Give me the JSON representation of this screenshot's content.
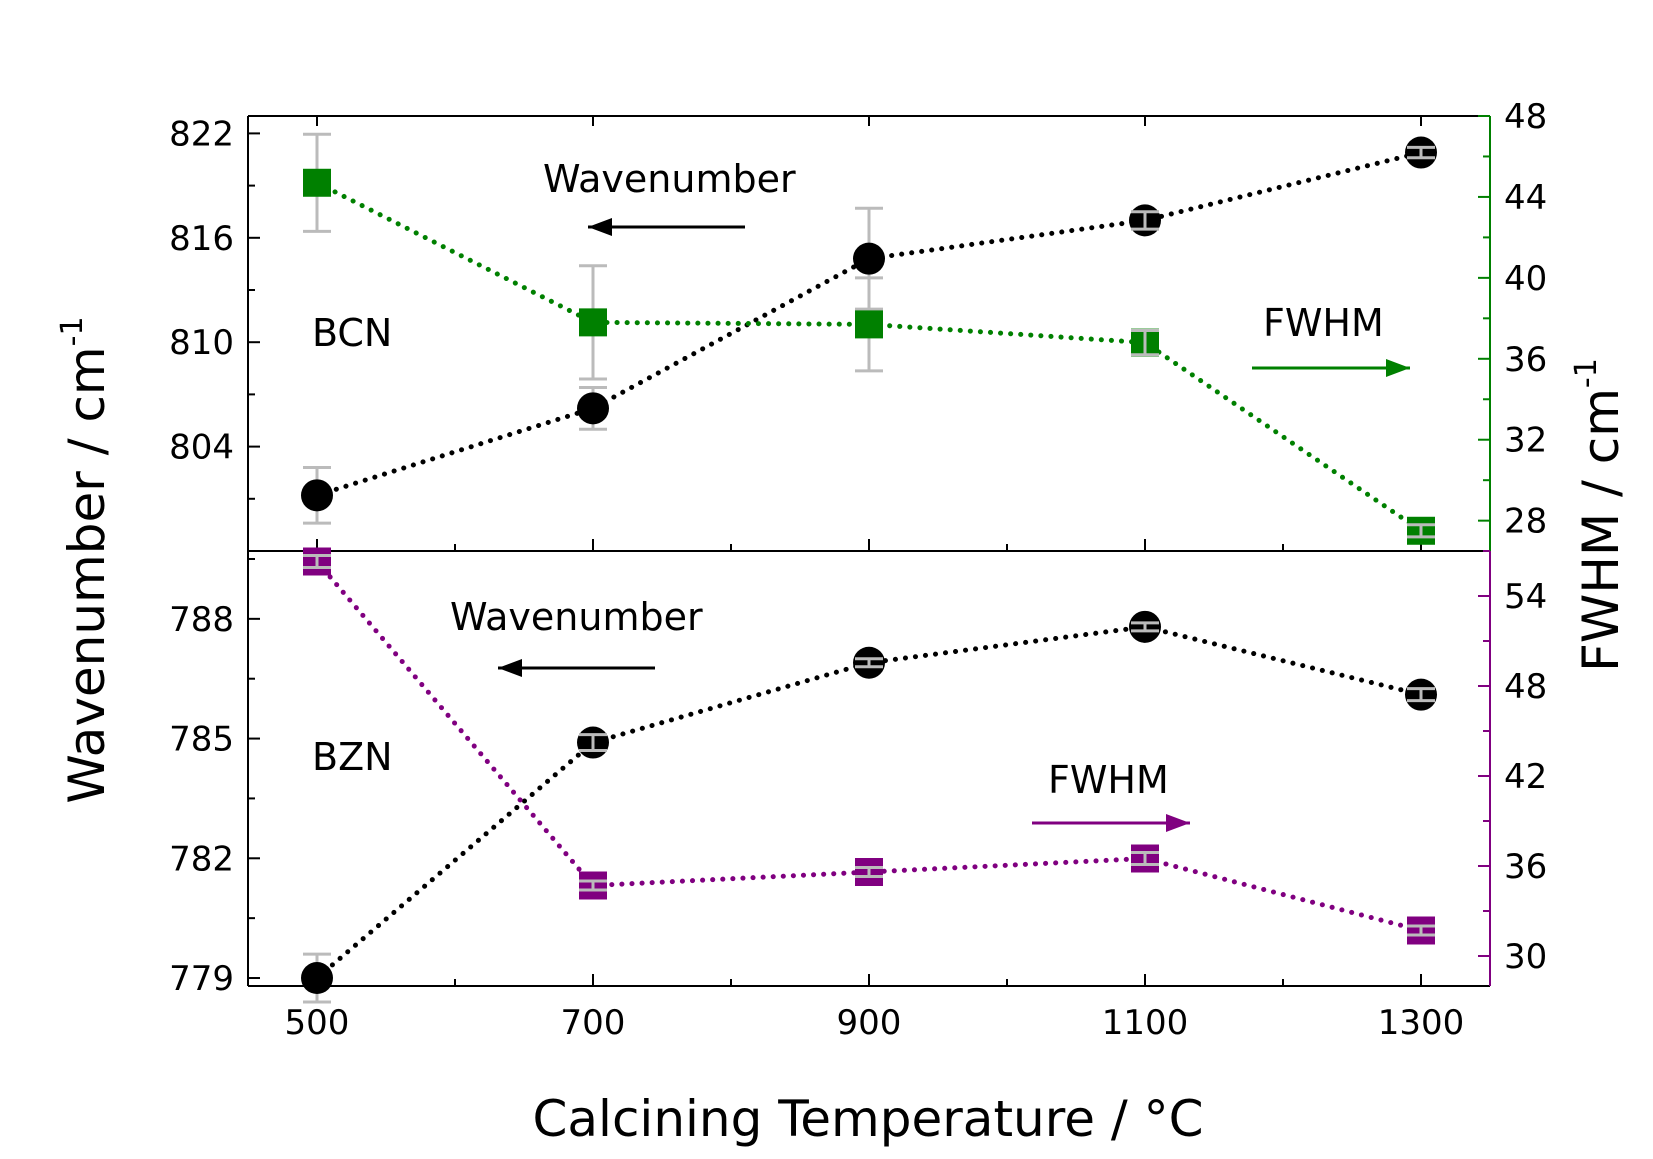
{
  "chart_data": [
    {
      "type": "scatter",
      "panel": "top",
      "sample_label": "BCN",
      "x": [
        500,
        700,
        900,
        1100,
        1300
      ],
      "xlim": [
        450,
        1350
      ],
      "xticks": [
        500,
        700,
        900,
        1100,
        1300
      ],
      "left_axis": {
        "label": "Wavenumber / cm",
        "superscript": "-1",
        "ylim": [
          798,
          823
        ],
        "ticks": [
          804,
          810,
          816,
          822
        ],
        "color": "#000000"
      },
      "right_axis": {
        "label": "FWHM / cm",
        "superscript": "-1",
        "ylim": [
          26.5,
          48
        ],
        "ticks": [
          28,
          32,
          36,
          40,
          44,
          48
        ],
        "color": "#008000"
      },
      "series": [
        {
          "name": "Wavenumber",
          "axis": "left",
          "marker": "circle",
          "color": "#000000",
          "values": [
            801.2,
            806.2,
            814.8,
            817.0,
            820.9
          ],
          "errors": [
            1.6,
            1.2,
            2.9,
            0.5,
            0.3
          ]
        },
        {
          "name": "FWHM",
          "axis": "right",
          "marker": "square",
          "color": "#008000",
          "values": [
            44.7,
            37.8,
            37.7,
            36.8,
            27.5
          ],
          "errors": [
            2.4,
            2.8,
            2.3,
            0.6,
            0.3
          ]
        }
      ],
      "annotations": [
        {
          "text": "Wavenumber",
          "arrow": "left"
        },
        {
          "text": "FWHM",
          "arrow": "right"
        }
      ]
    },
    {
      "type": "scatter",
      "panel": "bottom",
      "sample_label": "BZN",
      "x": [
        500,
        700,
        900,
        1100,
        1300
      ],
      "xlim": [
        450,
        1350
      ],
      "xticks": [
        500,
        700,
        900,
        1100,
        1300
      ],
      "xlabel": "Calcining Temperature / °C",
      "left_axis": {
        "ylim": [
          778.8,
          789.7
        ],
        "ticks": [
          779,
          782,
          785,
          788
        ],
        "color": "#000000"
      },
      "right_axis": {
        "ylim": [
          28,
          57
        ],
        "ticks": [
          30,
          36,
          42,
          48,
          54
        ],
        "color": "#800080"
      },
      "series": [
        {
          "name": "Wavenumber",
          "axis": "left",
          "marker": "circle",
          "color": "#000000",
          "values": [
            779.0,
            784.9,
            786.9,
            787.8,
            786.1
          ],
          "errors": [
            0.6,
            0.2,
            0.1,
            0.1,
            0.15
          ]
        },
        {
          "name": "FWHM",
          "axis": "right",
          "marker": "square",
          "color": "#800080",
          "values": [
            56.3,
            34.7,
            35.6,
            36.5,
            31.7
          ],
          "errors": [
            0.4,
            0.3,
            0.3,
            0.4,
            0.3
          ]
        }
      ],
      "annotations": [
        {
          "text": "Wavenumber",
          "arrow": "left"
        },
        {
          "text": "FWHM",
          "arrow": "right"
        }
      ]
    }
  ]
}
